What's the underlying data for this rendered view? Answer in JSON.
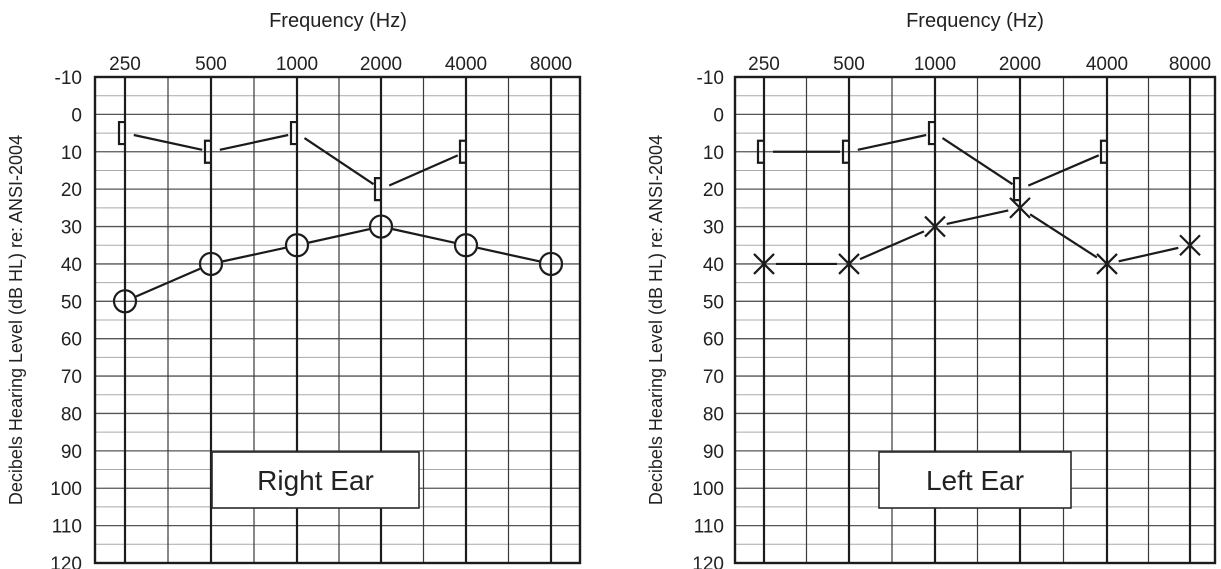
{
  "chart_data": [
    {
      "type": "line",
      "title": "Frequency (Hz)",
      "ylabel": "Decibels Hearing Level (dB HL) re: ANSI-2004",
      "categories": [
        "250",
        "500",
        "1000",
        "2000",
        "4000",
        "8000"
      ],
      "yticks": [
        "-10",
        "0",
        "10",
        "20",
        "30",
        "40",
        "50",
        "60",
        "70",
        "80",
        "90",
        "100",
        "110",
        "120"
      ],
      "ylim": [
        -10,
        120
      ],
      "y_inverted": true,
      "grid": true,
      "box_label": "Right Ear",
      "series": [
        {
          "marker": "bracket",
          "x": [
            "250",
            "500",
            "1000",
            "2000",
            "4000"
          ],
          "values": [
            5,
            10,
            5,
            20,
            10
          ]
        },
        {
          "marker": "circle",
          "x": [
            "250",
            "500",
            "1000",
            "2000",
            "4000",
            "8000"
          ],
          "values": [
            50,
            40,
            35,
            30,
            35,
            40
          ]
        }
      ]
    },
    {
      "type": "line",
      "title": "Frequency (Hz)",
      "ylabel": "Decibels Hearing Level (dB HL) re: ANSI-2004",
      "categories": [
        "250",
        "500",
        "1000",
        "2000",
        "4000",
        "8000"
      ],
      "yticks": [
        "-10",
        "0",
        "10",
        "20",
        "30",
        "40",
        "50",
        "60",
        "70",
        "80",
        "90",
        "100",
        "110",
        "120"
      ],
      "ylim": [
        -10,
        120
      ],
      "y_inverted": true,
      "grid": true,
      "box_label": "Left Ear",
      "series": [
        {
          "marker": "bracket",
          "x": [
            "250",
            "500",
            "1000",
            "2000",
            "4000"
          ],
          "values": [
            10,
            10,
            5,
            20,
            10
          ]
        },
        {
          "marker": "cross",
          "x": [
            "250",
            "500",
            "1000",
            "2000",
            "4000",
            "8000"
          ],
          "values": [
            40,
            40,
            30,
            25,
            40,
            35
          ]
        }
      ]
    }
  ]
}
